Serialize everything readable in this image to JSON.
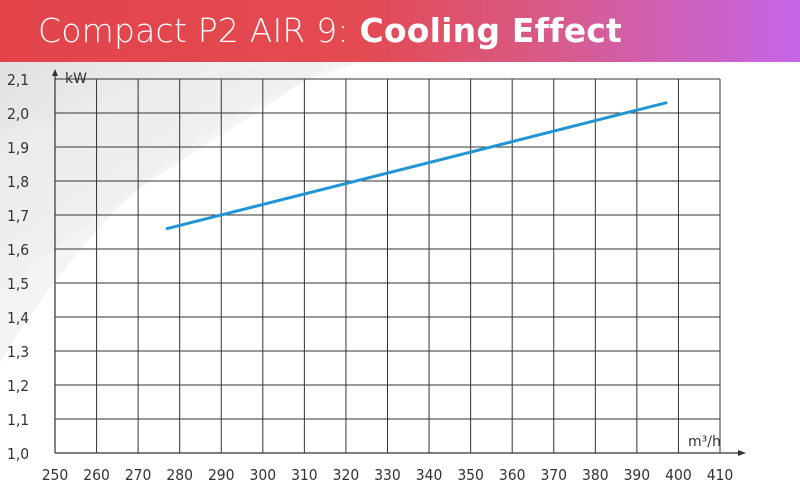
{
  "header": {
    "title_regular": "Compact P2 AIR 9:",
    "title_bold": "Cooling Effect"
  },
  "chart_data": {
    "type": "line",
    "title": "Compact P2 AIR 9: Cooling Effect",
    "xlabel": "m³/h",
    "ylabel": "kW",
    "xlim": [
      250,
      410
    ],
    "ylim": [
      1.0,
      2.1
    ],
    "x_ticks": [
      "250",
      "260",
      "270",
      "280",
      "290",
      "300",
      "310",
      "320",
      "330",
      "340",
      "350",
      "360",
      "370",
      "380",
      "390",
      "400",
      "410"
    ],
    "y_ticks": [
      "1,0",
      "1,1",
      "1,2",
      "1,3",
      "1,4",
      "1,5",
      "1,6",
      "1,7",
      "1,8",
      "1,9",
      "2,0",
      "2,1"
    ],
    "grid": true,
    "legend": "none",
    "series": [
      {
        "x": [
          277,
          397
        ],
        "y": [
          1.66,
          2.03
        ],
        "color": "#2196d3"
      }
    ],
    "colors": {
      "grid": "#333333",
      "line": "#2196d3"
    }
  }
}
